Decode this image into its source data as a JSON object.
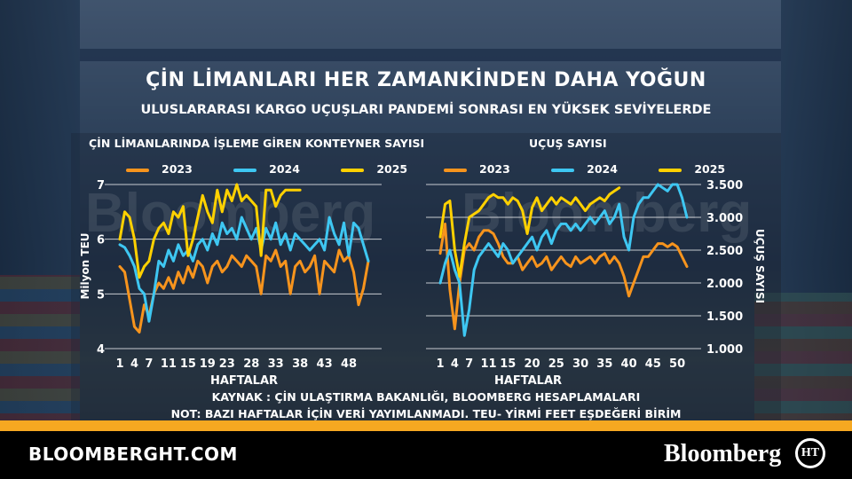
{
  "header": {
    "title": "ÇİN LİMANLARI HER ZAMANKİNDEN DAHA YOĞUN",
    "subtitle": "ULUSLARARASI KARGO UÇUŞLARI PANDEMİ SONRASI EN YÜKSEK SEVİYELERDE"
  },
  "watermark": "Bloomberg",
  "colors": {
    "y2023": "#f7941d",
    "y2024": "#3ec7f2",
    "y2025": "#ffd100",
    "stripe": "#f6a821"
  },
  "notes": {
    "source": "KAYNAK : ÇİN ULAŞTIRMA BAKANLIĞI, BLOOMBERG HESAPLAMALARI",
    "note": "NOT: BAZI HAFTALAR İÇİN VERİ YAYIMLANMADI. TEU- YİRMİ FEET EŞDEĞERİ BİRİM"
  },
  "footer": {
    "site": "BLOOMBERGHT.COM",
    "brand": "Bloomberg",
    "logo_text": "HT"
  },
  "chart_data": [
    {
      "type": "line",
      "title": "ÇİN LİMANLARINDA İŞLEME GİREN KONTEYNER SAYISI",
      "xlabel": "HAFTALAR",
      "ylabel": "Milyon TEU",
      "xticks": [
        1,
        4,
        7,
        11,
        15,
        19,
        23,
        28,
        33,
        38,
        43,
        48
      ],
      "yticks": [
        4,
        5,
        6,
        7
      ],
      "xlim": [
        1,
        52
      ],
      "ylim": [
        4,
        7
      ],
      "axis_side": "left",
      "legend_position": "top",
      "series": [
        {
          "name": "2023",
          "color": "#f7941d",
          "x": [
            1,
            2,
            3,
            4,
            5,
            6,
            7,
            8,
            9,
            10,
            11,
            12,
            13,
            14,
            15,
            16,
            17,
            18,
            19,
            20,
            21,
            22,
            23,
            24,
            25,
            26,
            27,
            28,
            29,
            30,
            31,
            32,
            33,
            34,
            35,
            36,
            37,
            38,
            39,
            40,
            41,
            42,
            43,
            44,
            45,
            46,
            47,
            48,
            49,
            50,
            51,
            52
          ],
          "values": [
            5.5,
            5.4,
            4.9,
            4.4,
            4.3,
            4.8,
            4.6,
            5.0,
            5.2,
            5.1,
            5.3,
            5.1,
            5.4,
            5.2,
            5.5,
            5.3,
            5.6,
            5.5,
            5.2,
            5.5,
            5.6,
            5.4,
            5.5,
            5.7,
            5.6,
            5.5,
            5.7,
            5.6,
            5.5,
            5.0,
            5.7,
            5.6,
            5.8,
            5.5,
            5.6,
            5.0,
            5.5,
            5.6,
            5.4,
            5.5,
            5.7,
            5.0,
            5.6,
            5.5,
            5.4,
            5.8,
            5.6,
            5.7,
            5.4,
            4.8,
            5.1,
            5.6
          ]
        },
        {
          "name": "2024",
          "color": "#3ec7f2",
          "x": [
            1,
            2,
            3,
            4,
            5,
            6,
            7,
            8,
            9,
            10,
            11,
            12,
            13,
            14,
            15,
            16,
            17,
            18,
            19,
            20,
            21,
            22,
            23,
            24,
            25,
            26,
            27,
            28,
            29,
            30,
            31,
            32,
            33,
            34,
            35,
            36,
            37,
            38,
            39,
            40,
            41,
            42,
            43,
            44,
            45,
            46,
            47,
            48,
            49,
            50,
            51,
            52
          ],
          "values": [
            5.9,
            5.85,
            5.7,
            5.5,
            5.1,
            5.0,
            4.5,
            5.0,
            5.6,
            5.5,
            5.8,
            5.6,
            5.9,
            5.7,
            5.8,
            5.6,
            5.9,
            6.0,
            5.8,
            6.1,
            5.9,
            6.3,
            6.1,
            6.2,
            6.0,
            6.4,
            6.2,
            6.0,
            6.2,
            5.8,
            6.2,
            6.0,
            6.3,
            5.9,
            6.1,
            5.8,
            6.1,
            6.0,
            5.9,
            5.8,
            5.9,
            6.0,
            5.8,
            6.4,
            6.1,
            5.9,
            6.3,
            5.7,
            6.3,
            6.2,
            5.9,
            5.6
          ]
        },
        {
          "name": "2025",
          "color": "#ffd100",
          "x": [
            1,
            2,
            3,
            4,
            5,
            6,
            7,
            8,
            9,
            10,
            11,
            12,
            13,
            14,
            15,
            16,
            17,
            18,
            19,
            20,
            21,
            22,
            23,
            24,
            25,
            26,
            27,
            28,
            29,
            30,
            31,
            32,
            33,
            34,
            35,
            36,
            37,
            38
          ],
          "values": [
            6.0,
            6.5,
            6.4,
            6.0,
            5.3,
            5.5,
            5.6,
            6.0,
            6.2,
            6.3,
            6.1,
            6.5,
            6.4,
            6.6,
            5.7,
            6.0,
            6.4,
            6.8,
            6.5,
            6.3,
            6.9,
            6.5,
            6.9,
            6.7,
            7.0,
            6.7,
            6.8,
            6.7,
            6.6,
            5.7,
            6.9,
            6.9,
            6.6,
            6.8,
            6.9,
            6.9,
            6.9,
            6.9
          ]
        }
      ]
    },
    {
      "type": "line",
      "title": "UÇUŞ SAYISI",
      "xlabel": "HAFTALAR",
      "ylabel": "UÇUŞ SAYISI",
      "xticks": [
        1,
        4,
        7,
        11,
        15,
        20,
        25,
        30,
        35,
        40,
        45,
        50
      ],
      "yticks": [
        "1.000",
        "1.500",
        "2.000",
        "2.500",
        "3.000",
        "3.500"
      ],
      "xlim": [
        1,
        52
      ],
      "ylim": [
        1000,
        3500
      ],
      "axis_side": "right",
      "legend_position": "top",
      "series": [
        {
          "name": "2023",
          "color": "#f7941d",
          "x": [
            1,
            2,
            3,
            4,
            5,
            6,
            7,
            8,
            9,
            10,
            11,
            12,
            13,
            14,
            15,
            16,
            17,
            18,
            19,
            20,
            21,
            22,
            23,
            24,
            25,
            26,
            27,
            28,
            29,
            30,
            31,
            32,
            33,
            34,
            35,
            36,
            37,
            38,
            39,
            40,
            41,
            42,
            43,
            44,
            45,
            46,
            47,
            48,
            49,
            50,
            51,
            52
          ],
          "values": [
            2450,
            2900,
            1900,
            1300,
            2000,
            2500,
            2600,
            2500,
            2700,
            2800,
            2800,
            2750,
            2600,
            2400,
            2300,
            2300,
            2400,
            2200,
            2300,
            2400,
            2250,
            2300,
            2400,
            2200,
            2300,
            2400,
            2300,
            2250,
            2400,
            2300,
            2350,
            2400,
            2300,
            2400,
            2450,
            2300,
            2400,
            2300,
            2100,
            1800,
            2000,
            2200,
            2400,
            2400,
            2500,
            2600,
            2600,
            2550,
            2600,
            2550,
            2400,
            2250
          ]
        },
        {
          "name": "2024",
          "color": "#3ec7f2",
          "x": [
            1,
            2,
            3,
            4,
            5,
            6,
            7,
            8,
            9,
            10,
            11,
            12,
            13,
            14,
            15,
            16,
            17,
            18,
            19,
            20,
            21,
            22,
            23,
            24,
            25,
            26,
            27,
            28,
            29,
            30,
            31,
            32,
            33,
            34,
            35,
            36,
            37,
            38,
            39,
            40,
            41,
            42,
            43,
            44,
            45,
            46,
            47,
            48,
            49,
            50,
            51,
            52
          ],
          "values": [
            2000,
            2300,
            2500,
            2200,
            2000,
            1200,
            1600,
            2200,
            2400,
            2500,
            2600,
            2500,
            2400,
            2600,
            2500,
            2300,
            2400,
            2500,
            2600,
            2700,
            2500,
            2700,
            2800,
            2600,
            2800,
            2900,
            2900,
            2800,
            2900,
            2800,
            2900,
            3000,
            2900,
            3000,
            3100,
            2900,
            3000,
            3200,
            2700,
            2500,
            3000,
            3200,
            3300,
            3300,
            3400,
            3500,
            3450,
            3400,
            3500,
            3500,
            3300,
            3000
          ]
        },
        {
          "name": "2025",
          "color": "#ffd100",
          "x": [
            1,
            2,
            3,
            4,
            5,
            6,
            7,
            8,
            9,
            10,
            11,
            12,
            13,
            14,
            15,
            16,
            17,
            18,
            19,
            20,
            21,
            22,
            23,
            24,
            25,
            26,
            27,
            28,
            29,
            30,
            31,
            32,
            33,
            34,
            35,
            36,
            37,
            38
          ],
          "values": [
            2700,
            3200,
            3250,
            2500,
            2100,
            2600,
            3000,
            3050,
            3100,
            3200,
            3300,
            3350,
            3300,
            3300,
            3200,
            3300,
            3250,
            3100,
            2750,
            3150,
            3300,
            3100,
            3200,
            3300,
            3200,
            3300,
            3250,
            3200,
            3300,
            3200,
            3100,
            3200,
            3250,
            3300,
            3250,
            3350,
            3400,
            3450
          ]
        }
      ]
    }
  ]
}
